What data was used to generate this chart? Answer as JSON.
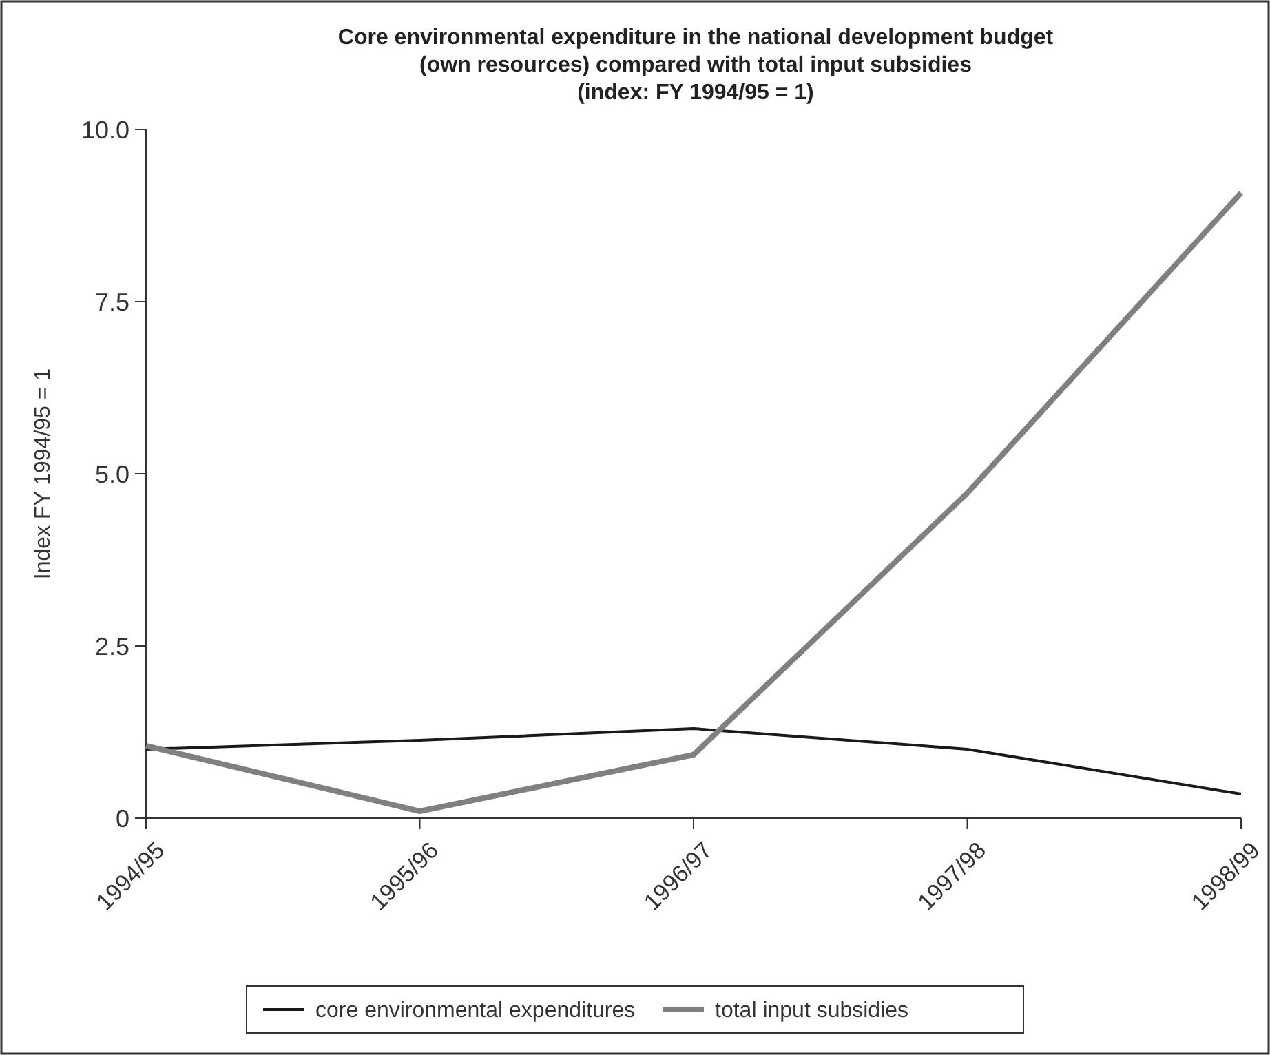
{
  "chart_data": {
    "type": "line",
    "title": "Core environmental expenditure in the national development budget\n(own resources) compared with total input subsidies\n(index: FY 1994/95 = 1)",
    "ylabel": "Index FY 1994/95 = 1",
    "categories": [
      "1994/95",
      "1995/96",
      "1996/97",
      "1997/98",
      "1998/99"
    ],
    "series": [
      {
        "name": "core environmental expenditures",
        "color": "#1a1a1a",
        "values": [
          1.0,
          1.13,
          1.3,
          1.0,
          0.35
        ]
      },
      {
        "name": "total input subsidies",
        "color": "#808080",
        "values": [
          1.05,
          0.1,
          0.92,
          4.72,
          9.08
        ]
      }
    ],
    "ylim": [
      0,
      10
    ],
    "yticks": [
      0,
      2.5,
      {
        "value": 5,
        "label": "5.0"
      },
      7.5,
      {
        "value": 10,
        "label": "10.0"
      }
    ],
    "grid": false,
    "legend": "bottom",
    "marker": "none",
    "line_style": "solid"
  }
}
